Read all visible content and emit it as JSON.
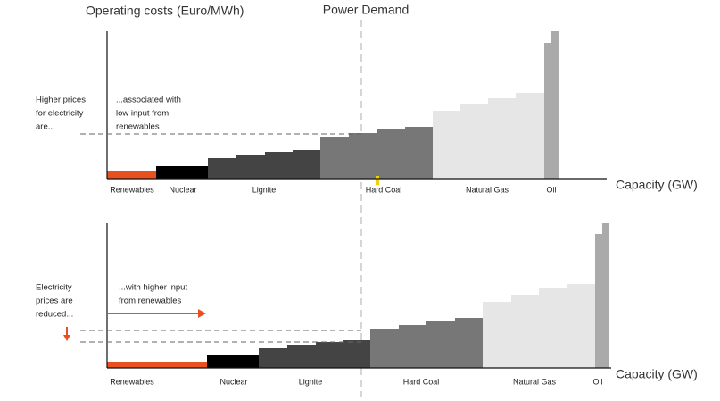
{
  "header": {
    "y_axis_label": "Operating costs (Euro/MWh)",
    "demand_label": "Power Demand"
  },
  "panels": [
    {
      "side_note": [
        "Higher prices",
        "for electricity",
        "are..."
      ],
      "note": [
        "...associated with",
        "low input from",
        "renewables"
      ],
      "sources": [
        "Renewables",
        "Nuclear",
        "Lignite",
        "Hard Coal",
        "Natural Gas",
        "Oil"
      ],
      "x_axis_label": "Capacity (GW)"
    },
    {
      "side_note": [
        "Electricity",
        "prices are",
        "reduced..."
      ],
      "note": [
        "...with higher input",
        "from renewables"
      ],
      "sources": [
        "Renewables",
        "Nuclear",
        "Lignite",
        "Hard Coal",
        "Natural Gas",
        "Oil"
      ],
      "x_axis_label": "Capacity (GW)"
    }
  ]
}
